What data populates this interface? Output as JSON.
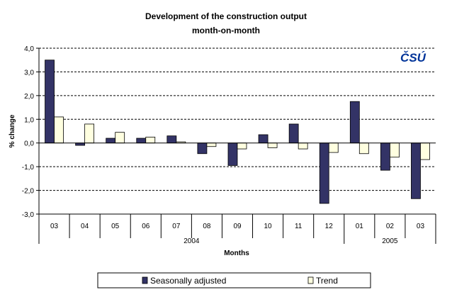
{
  "chart_data": {
    "type": "bar",
    "title_line1": "Development of the construction output",
    "title_line2": "month-on-month",
    "ylabel": "% change",
    "xlabel": "Months",
    "ylim": [
      -3.0,
      4.0
    ],
    "ytick_labels": [
      "4,0",
      "3,0",
      "2,0",
      "1,0",
      "0,0",
      "-1,0",
      "-2,0",
      "-3,0"
    ],
    "categories": [
      "03",
      "04",
      "05",
      "06",
      "07",
      "08",
      "09",
      "10",
      "11",
      "12",
      "01",
      "02",
      "03"
    ],
    "years": [
      {
        "label": "2004",
        "count": 10
      },
      {
        "label": "2005",
        "count": 3
      }
    ],
    "grid": true,
    "legend_position": "bottom",
    "series": [
      {
        "name": "Seasonally adjusted",
        "color": "#333366",
        "values": [
          3.5,
          -0.1,
          0.2,
          0.2,
          0.3,
          -0.45,
          -0.95,
          0.35,
          0.8,
          -2.55,
          1.75,
          -1.15,
          -2.35
        ]
      },
      {
        "name": "Trend",
        "color": "#FFFFE0",
        "values": [
          1.1,
          0.8,
          0.45,
          0.25,
          0.05,
          -0.15,
          -0.25,
          -0.2,
          -0.25,
          -0.4,
          -0.45,
          -0.6,
          -0.7
        ]
      }
    ],
    "logo_text": "ČSÚ",
    "logo_color": "#003399"
  }
}
